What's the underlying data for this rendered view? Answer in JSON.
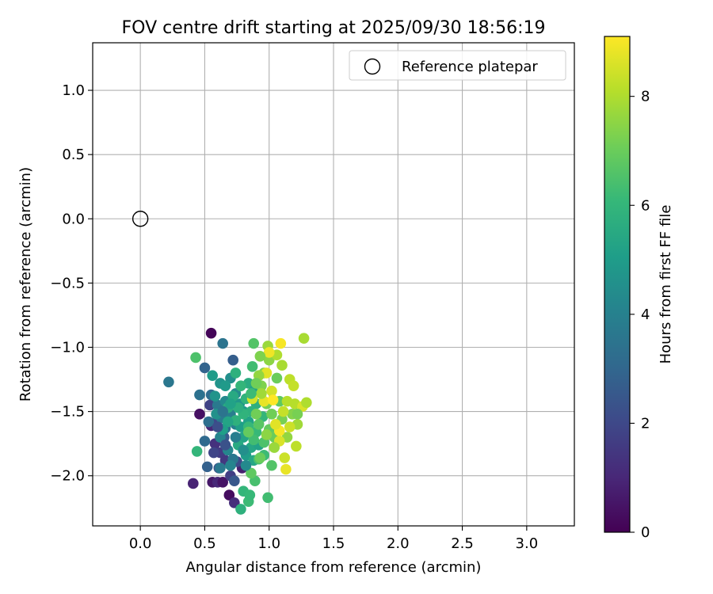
{
  "chart_data": {
    "type": "scatter",
    "title": "FOV centre drift starting at 2025/09/30 18:56:19",
    "xlabel": "Angular distance from reference (arcmin)",
    "ylabel": "Rotation from reference (arcmin)",
    "xlim": [
      -0.37,
      3.37
    ],
    "ylim": [
      -2.39,
      1.37
    ],
    "xticks": [
      0.0,
      0.5,
      1.0,
      1.5,
      2.0,
      2.5,
      3.0
    ],
    "xtick_labels": [
      "0.0",
      "0.5",
      "1.0",
      "1.5",
      "2.0",
      "2.5",
      "3.0"
    ],
    "yticks": [
      1.0,
      0.5,
      0.0,
      -0.5,
      -1.0,
      -1.5,
      -2.0
    ],
    "ytick_labels": [
      "1.0",
      "0.5",
      "0.0",
      "−0.5",
      "−1.0",
      "−1.5",
      "−2.0"
    ],
    "grid": true,
    "legend": {
      "placement": "top-right",
      "entries": [
        "Reference platepar"
      ]
    },
    "reference_point": {
      "x": 0.0,
      "y": 0.0,
      "label": "Reference platepar"
    },
    "colorbar": {
      "label": "Hours from first FF file",
      "range": [
        0,
        9.1
      ],
      "ticks": [
        0,
        2,
        4,
        6,
        8
      ],
      "tick_labels": [
        "0",
        "2",
        "4",
        "6",
        "8"
      ],
      "colormap": "viridis",
      "stops": [
        "#440154",
        "#482878",
        "#3e4989",
        "#31688e",
        "#26828e",
        "#1f9e89",
        "#35b779",
        "#6ece58",
        "#b5de2b",
        "#fde725"
      ]
    },
    "points_columns": [
      "x",
      "y",
      "hours"
    ],
    "points": [
      [
        0.55,
        -0.89,
        0.1
      ],
      [
        0.46,
        -1.52,
        0.4
      ],
      [
        0.41,
        -2.06,
        0.9
      ],
      [
        0.56,
        -2.05,
        0.6
      ],
      [
        0.6,
        -2.05,
        1.0
      ],
      [
        0.64,
        -2.05,
        0.5
      ],
      [
        0.69,
        -2.15,
        0.3
      ],
      [
        0.73,
        -2.21,
        1.2
      ],
      [
        0.79,
        -1.94,
        0.8
      ],
      [
        0.55,
        -1.61,
        1.0
      ],
      [
        0.58,
        -1.75,
        1.3
      ],
      [
        0.62,
        -1.82,
        1.6
      ],
      [
        0.66,
        -1.88,
        1.5
      ],
      [
        0.7,
        -2.0,
        1.7
      ],
      [
        0.54,
        -1.45,
        1.8
      ],
      [
        0.6,
        -1.57,
        2.0
      ],
      [
        0.75,
        -1.89,
        2.1
      ],
      [
        0.61,
        -1.94,
        2.4
      ],
      [
        0.52,
        -1.93,
        2.8
      ],
      [
        0.65,
        -1.7,
        2.6
      ],
      [
        0.73,
        -2.04,
        2.5
      ],
      [
        0.72,
        -1.1,
        2.7
      ],
      [
        0.5,
        -1.16,
        2.9
      ],
      [
        0.5,
        -1.73,
        3.1
      ],
      [
        0.53,
        -1.58,
        3.3
      ],
      [
        0.46,
        -1.37,
        3.4
      ],
      [
        0.55,
        -1.37,
        3.2
      ],
      [
        0.64,
        -0.97,
        3.5
      ],
      [
        0.22,
        -1.27,
        3.6
      ],
      [
        0.6,
        -1.45,
        3.7
      ],
      [
        0.63,
        -1.55,
        3.8
      ],
      [
        0.66,
        -1.63,
        3.4
      ],
      [
        0.7,
        -1.52,
        3.9
      ],
      [
        0.74,
        -1.6,
        4.0
      ],
      [
        0.62,
        -1.7,
        4.1
      ],
      [
        0.68,
        -1.8,
        4.2
      ],
      [
        0.72,
        -1.87,
        3.6
      ],
      [
        0.66,
        -1.42,
        4.3
      ],
      [
        0.74,
        -1.36,
        4.4
      ],
      [
        0.7,
        -1.24,
        4.5
      ],
      [
        0.59,
        -1.52,
        4.6
      ],
      [
        0.62,
        -1.28,
        4.7
      ],
      [
        0.56,
        -1.22,
        5.0
      ],
      [
        0.77,
        -1.44,
        4.8
      ],
      [
        0.8,
        -1.5,
        4.9
      ],
      [
        0.78,
        -1.62,
        5.1
      ],
      [
        0.84,
        -1.58,
        5.2
      ],
      [
        0.8,
        -1.7,
        5.3
      ],
      [
        0.86,
        -1.78,
        5.4
      ],
      [
        0.82,
        -1.84,
        5.0
      ],
      [
        0.76,
        -1.76,
        5.5
      ],
      [
        0.84,
        -1.28,
        5.6
      ],
      [
        0.88,
        -1.34,
        5.3
      ],
      [
        0.9,
        -1.44,
        5.7
      ],
      [
        0.86,
        -1.5,
        5.8
      ],
      [
        0.82,
        -1.4,
        5.9
      ],
      [
        0.95,
        -1.54,
        6.0
      ],
      [
        0.9,
        -1.66,
        6.1
      ],
      [
        0.92,
        -1.76,
        5.2
      ],
      [
        0.96,
        -1.84,
        6.2
      ],
      [
        0.88,
        -1.88,
        5.4
      ],
      [
        0.68,
        -1.47,
        5.6
      ],
      [
        0.74,
        -1.57,
        5.8
      ],
      [
        0.8,
        -2.12,
        6.0
      ],
      [
        0.78,
        -2.26,
        5.8
      ],
      [
        0.84,
        -2.2,
        6.2
      ],
      [
        0.85,
        -2.15,
        6.1
      ],
      [
        0.99,
        -2.17,
        6.3
      ],
      [
        0.89,
        -2.04,
        6.4
      ],
      [
        0.44,
        -1.81,
        6.0
      ],
      [
        0.43,
        -1.08,
        6.5
      ],
      [
        0.87,
        -1.15,
        6.3
      ],
      [
        0.88,
        -0.97,
        6.6
      ],
      [
        1.02,
        -1.92,
        6.6
      ],
      [
        0.92,
        -1.87,
        6.4
      ],
      [
        0.86,
        -1.98,
        6.8
      ],
      [
        1.0,
        -1.64,
        6.9
      ],
      [
        1.04,
        -1.7,
        7.0
      ],
      [
        1.02,
        -1.52,
        7.1
      ],
      [
        0.98,
        -1.44,
        7.2
      ],
      [
        0.94,
        -1.3,
        7.3
      ],
      [
        0.96,
        -1.2,
        7.4
      ],
      [
        1.0,
        -1.1,
        7.5
      ],
      [
        1.06,
        -1.24,
        7.0
      ],
      [
        1.08,
        -1.42,
        6.8
      ],
      [
        1.1,
        -1.56,
        7.2
      ],
      [
        1.14,
        -1.7,
        7.6
      ],
      [
        1.18,
        -1.52,
        7.4
      ],
      [
        1.22,
        -1.6,
        7.8
      ],
      [
        1.1,
        -1.14,
        7.9
      ],
      [
        1.06,
        -1.06,
        8.0
      ],
      [
        0.99,
        -0.99,
        7.7
      ],
      [
        1.27,
        -0.93,
        7.9
      ],
      [
        1.2,
        -1.44,
        8.1
      ],
      [
        1.21,
        -1.77,
        8.2
      ],
      [
        1.12,
        -1.86,
        8.4
      ],
      [
        1.13,
        -1.95,
        8.8
      ],
      [
        1.08,
        -1.73,
        8.6
      ],
      [
        1.11,
        -1.5,
        8.3
      ],
      [
        1.02,
        -1.34,
        8.5
      ],
      [
        0.98,
        -1.2,
        8.7
      ],
      [
        1.0,
        -1.04,
        8.9
      ],
      [
        1.09,
        -0.97,
        9.0
      ],
      [
        0.96,
        -1.42,
        8.8
      ],
      [
        1.03,
        -1.41,
        9.1
      ],
      [
        1.08,
        -1.65,
        9.0
      ],
      [
        1.05,
        -1.6,
        8.7
      ],
      [
        1.16,
        -1.25,
        8.2
      ],
      [
        1.26,
        -1.46,
        8.6
      ],
      [
        1.29,
        -1.43,
        8.0
      ],
      [
        1.19,
        -1.3,
        8.3
      ],
      [
        1.14,
        -1.42,
        8.1
      ],
      [
        0.92,
        -1.22,
        7.6
      ],
      [
        0.94,
        -1.36,
        7.8
      ],
      [
        0.9,
        -1.28,
        7.1
      ],
      [
        0.93,
        -1.07,
        7.3
      ],
      [
        0.87,
        -1.4,
        8.5
      ],
      [
        0.92,
        -1.6,
        6.7
      ],
      [
        0.96,
        -1.74,
        6.5
      ],
      [
        0.88,
        -1.72,
        6.3
      ],
      [
        0.84,
        -1.62,
        6.1
      ],
      [
        0.8,
        -1.52,
        5.9
      ],
      [
        0.76,
        -1.47,
        5.7
      ],
      [
        0.72,
        -1.38,
        5.5
      ],
      [
        0.68,
        -1.58,
        5.3
      ],
      [
        0.64,
        -1.64,
        5.1
      ],
      [
        0.66,
        -1.3,
        4.9
      ],
      [
        0.58,
        -1.38,
        4.7
      ],
      [
        0.8,
        -1.8,
        4.5
      ],
      [
        0.82,
        -1.92,
        4.3
      ],
      [
        0.7,
        -1.92,
        4.1
      ],
      [
        0.74,
        -1.7,
        3.9
      ],
      [
        0.62,
        -1.94,
        3.7
      ],
      [
        0.64,
        -1.5,
        3.5
      ],
      [
        0.84,
        -1.66,
        6.9
      ],
      [
        0.9,
        -1.52,
        7.1
      ],
      [
        1.04,
        -1.78,
        7.7
      ],
      [
        1.16,
        -1.62,
        8.4
      ],
      [
        0.98,
        -1.68,
        7.5
      ],
      [
        0.93,
        -1.86,
        7.0
      ],
      [
        1.22,
        -1.52,
        7.2
      ],
      [
        0.86,
        -1.36,
        6.2
      ],
      [
        0.78,
        -1.3,
        6.0
      ],
      [
        0.74,
        -1.2,
        5.8
      ],
      [
        0.7,
        -1.44,
        5.2
      ],
      [
        0.6,
        -1.62,
        2.2
      ],
      [
        0.57,
        -1.82,
        1.9
      ],
      [
        0.66,
        -1.76,
        2.3
      ]
    ]
  }
}
